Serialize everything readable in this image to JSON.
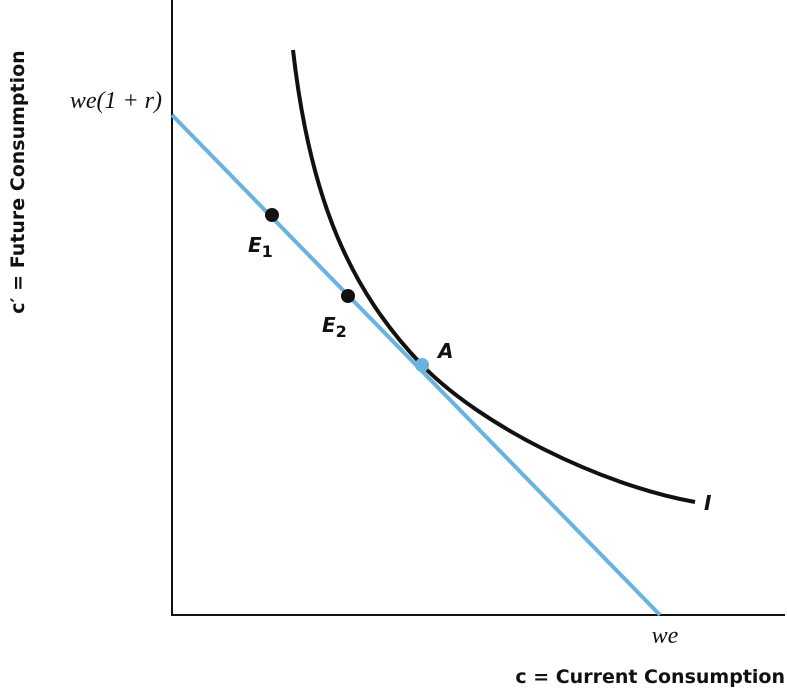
{
  "axes": {
    "x_label": "c = Current Consumption",
    "y_label": "c′ = Future Consumption",
    "y_intercept": "we(1 + r)",
    "x_intercept": "we"
  },
  "curve": {
    "label": "I"
  },
  "points": [
    {
      "label": "E",
      "subscript": "1"
    },
    {
      "label": "E",
      "subscript": "2"
    },
    {
      "label": "A"
    }
  ]
}
